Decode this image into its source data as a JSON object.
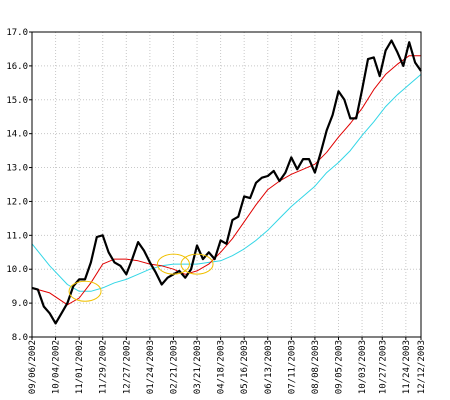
{
  "chart_data": {
    "type": "line",
    "title": "",
    "xlabel": "",
    "ylabel": "",
    "ylim": [
      8.0,
      17.0
    ],
    "y_ticks": [
      8.0,
      9.0,
      10.0,
      11.0,
      12.0,
      13.0,
      14.0,
      15.0,
      16.0,
      17.0
    ],
    "y_tick_labels": [
      "8.0",
      "9.0",
      "10.0",
      "11.0",
      "12.0",
      "13.0",
      "14.0",
      "15.0",
      "16.0",
      "17.0"
    ],
    "x_start": "09/06/2002",
    "x_end": "12/12/2003",
    "x_tick_labels": [
      "09/06/2002",
      "10/04/2002",
      "11/01/2002",
      "11/29/2002",
      "12/27/2002",
      "01/24/2003",
      "02/21/2003",
      "03/21/2003",
      "04/18/2003",
      "05/16/2003",
      "06/13/2003",
      "07/11/2003",
      "08/08/2003",
      "09/05/2003",
      "10/03/2003",
      "10/27/2003",
      "11/24/2003",
      "12/12/2003"
    ],
    "x_tick_dates": [
      "2002-09-06",
      "2002-10-04",
      "2002-11-01",
      "2002-11-29",
      "2002-12-27",
      "2003-01-24",
      "2003-02-21",
      "2003-03-21",
      "2003-04-18",
      "2003-05-16",
      "2003-06-13",
      "2003-07-11",
      "2003-08-08",
      "2003-09-05",
      "2003-10-03",
      "2003-10-27",
      "2003-11-24",
      "2003-12-12"
    ],
    "grid": true,
    "series": [
      {
        "color": "#000000",
        "x": [
          "2002-09-06",
          "2002-09-13",
          "2002-09-20",
          "2002-09-27",
          "2002-10-04",
          "2002-10-11",
          "2002-10-18",
          "2002-10-25",
          "2002-11-01",
          "2002-11-08",
          "2002-11-15",
          "2002-11-22",
          "2002-11-29",
          "2002-12-06",
          "2002-12-13",
          "2002-12-20",
          "2002-12-27",
          "2003-01-03",
          "2003-01-10",
          "2003-01-17",
          "2003-01-24",
          "2003-01-31",
          "2003-02-07",
          "2003-02-14",
          "2003-02-21",
          "2003-02-28",
          "2003-03-07",
          "2003-03-14",
          "2003-03-21",
          "2003-03-28",
          "2003-04-04",
          "2003-04-11",
          "2003-04-18",
          "2003-04-25",
          "2003-05-02",
          "2003-05-09",
          "2003-05-16",
          "2003-05-23",
          "2003-05-30",
          "2003-06-06",
          "2003-06-13",
          "2003-06-20",
          "2003-06-27",
          "2003-07-04",
          "2003-07-11",
          "2003-07-18",
          "2003-07-25",
          "2003-08-01",
          "2003-08-08",
          "2003-08-15",
          "2003-08-22",
          "2003-08-29",
          "2003-09-05",
          "2003-09-12",
          "2003-09-19",
          "2003-09-26",
          "2003-10-03",
          "2003-10-10",
          "2003-10-17",
          "2003-10-24",
          "2003-10-31",
          "2003-11-07",
          "2003-11-14",
          "2003-11-21",
          "2003-11-28",
          "2003-12-05",
          "2003-12-12"
        ],
        "values": [
          9.45,
          9.4,
          8.9,
          8.7,
          8.4,
          8.7,
          9.0,
          9.5,
          9.7,
          9.7,
          10.2,
          10.95,
          11.0,
          10.5,
          10.2,
          10.1,
          9.85,
          10.3,
          10.8,
          10.55,
          10.2,
          9.9,
          9.55,
          9.75,
          9.85,
          9.95,
          9.75,
          10.0,
          10.7,
          10.3,
          10.5,
          10.3,
          10.85,
          10.75,
          11.45,
          11.55,
          12.15,
          12.1,
          12.55,
          12.7,
          12.75,
          12.9,
          12.6,
          12.85,
          13.3,
          12.95,
          13.25,
          13.25,
          12.85,
          13.45,
          14.1,
          14.55,
          15.25,
          15.0,
          14.45,
          14.45,
          15.3,
          16.2,
          16.25,
          15.7,
          16.45,
          16.75,
          16.4,
          16.0,
          16.7,
          16.1,
          15.85
        ]
      },
      {
        "color": "#e00000",
        "x": [
          "2002-09-06",
          "2002-09-27",
          "2002-10-18",
          "2002-11-01",
          "2002-11-15",
          "2002-11-29",
          "2002-12-13",
          "2002-12-27",
          "2003-01-10",
          "2003-01-24",
          "2003-02-07",
          "2003-02-21",
          "2003-03-07",
          "2003-03-21",
          "2003-04-04",
          "2003-04-18",
          "2003-05-02",
          "2003-05-16",
          "2003-05-30",
          "2003-06-13",
          "2003-06-27",
          "2003-07-11",
          "2003-07-25",
          "2003-08-08",
          "2003-08-22",
          "2003-09-05",
          "2003-09-19",
          "2003-10-03",
          "2003-10-17",
          "2003-10-31",
          "2003-11-14",
          "2003-11-28",
          "2003-12-12"
        ],
        "values": [
          9.45,
          9.3,
          8.95,
          9.15,
          9.6,
          10.15,
          10.3,
          10.3,
          10.25,
          10.15,
          10.1,
          10.0,
          9.85,
          9.95,
          10.15,
          10.5,
          10.9,
          11.4,
          11.9,
          12.35,
          12.6,
          12.8,
          12.95,
          13.1,
          13.45,
          13.9,
          14.3,
          14.75,
          15.3,
          15.75,
          16.05,
          16.3,
          16.3
        ]
      },
      {
        "color": "#33d6e6",
        "x": [
          "2002-09-06",
          "2002-09-27",
          "2002-10-18",
          "2002-11-01",
          "2002-11-15",
          "2002-11-29",
          "2002-12-13",
          "2002-12-27",
          "2003-01-10",
          "2003-01-24",
          "2003-02-07",
          "2003-02-21",
          "2003-03-07",
          "2003-03-21",
          "2003-04-04",
          "2003-04-18",
          "2003-05-02",
          "2003-05-16",
          "2003-05-30",
          "2003-06-13",
          "2003-06-27",
          "2003-07-11",
          "2003-07-25",
          "2003-08-08",
          "2003-08-22",
          "2003-09-05",
          "2003-09-19",
          "2003-10-03",
          "2003-10-17",
          "2003-10-31",
          "2003-11-14",
          "2003-11-28",
          "2003-12-12"
        ],
        "values": [
          10.75,
          10.1,
          9.55,
          9.35,
          9.35,
          9.45,
          9.6,
          9.7,
          9.85,
          10.0,
          10.1,
          10.15,
          10.15,
          10.15,
          10.2,
          10.25,
          10.4,
          10.6,
          10.85,
          11.15,
          11.5,
          11.85,
          12.15,
          12.45,
          12.85,
          13.15,
          13.5,
          13.95,
          14.35,
          14.8,
          15.15,
          15.45,
          15.75
        ]
      }
    ],
    "annotations": [
      {
        "type": "ellipse",
        "color": "#f0c000",
        "date": "2002-11-08",
        "value": 9.35
      },
      {
        "type": "ellipse",
        "color": "#f0c000",
        "date": "2003-02-21",
        "value": 10.15
      },
      {
        "type": "ellipse",
        "color": "#f0c000",
        "date": "2003-03-21",
        "value": 10.15
      }
    ]
  }
}
